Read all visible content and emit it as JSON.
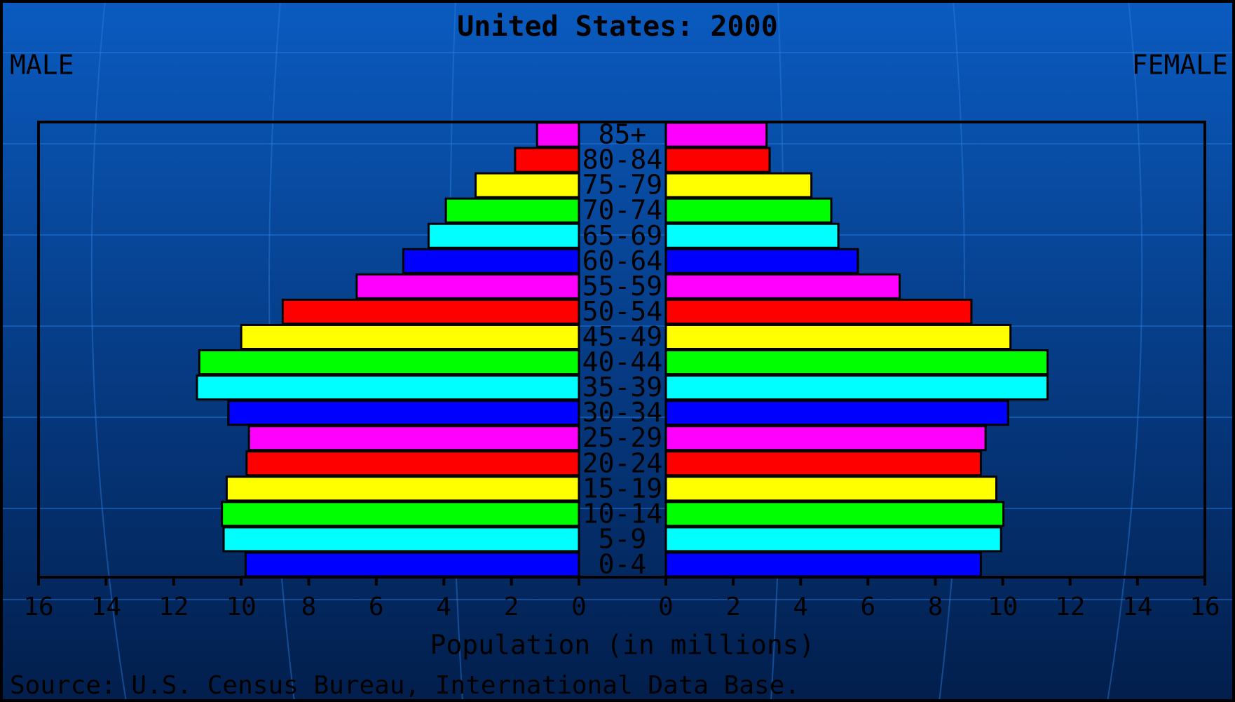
{
  "chart_data": {
    "type": "pyramid",
    "title": "United States: 2000",
    "left_label": "MALE",
    "right_label": "FEMALE",
    "x_label": "Population (in millions)",
    "source": "Source: U.S. Census Bureau, International Data Base.",
    "categories": [
      "0-4",
      "5-9",
      "10-14",
      "15-19",
      "20-24",
      "25-29",
      "30-34",
      "35-39",
      "40-44",
      "45-49",
      "50-54",
      "55-59",
      "60-64",
      "65-69",
      "70-74",
      "75-79",
      "80-84",
      "85+"
    ],
    "colors": [
      "#0000ff",
      "#00ffff",
      "#00ff00",
      "#ffff00",
      "#ff0000",
      "#ff00ff",
      "#0000ff",
      "#00ffff",
      "#00ff00",
      "#ffff00",
      "#ff0000",
      "#ff00ff",
      "#0000ff",
      "#00ffff",
      "#00ff00",
      "#ffff00",
      "#ff0000",
      "#ff00ff"
    ],
    "series": [
      {
        "name": "MALE",
        "values": [
          9.87,
          10.52,
          10.57,
          10.43,
          9.84,
          9.77,
          10.38,
          11.31,
          11.24,
          10.0,
          8.77,
          6.58,
          5.2,
          4.45,
          3.94,
          3.06,
          1.89,
          1.24
        ]
      },
      {
        "name": "FEMALE",
        "values": [
          9.35,
          9.95,
          10.02,
          9.81,
          9.35,
          9.49,
          10.16,
          11.33,
          11.33,
          10.23,
          9.07,
          6.94,
          5.7,
          5.12,
          4.91,
          4.32,
          3.08,
          2.99
        ]
      }
    ],
    "xlim": [
      0,
      16
    ],
    "xticks": [
      0,
      2,
      4,
      6,
      8,
      10,
      12,
      14,
      16
    ]
  }
}
